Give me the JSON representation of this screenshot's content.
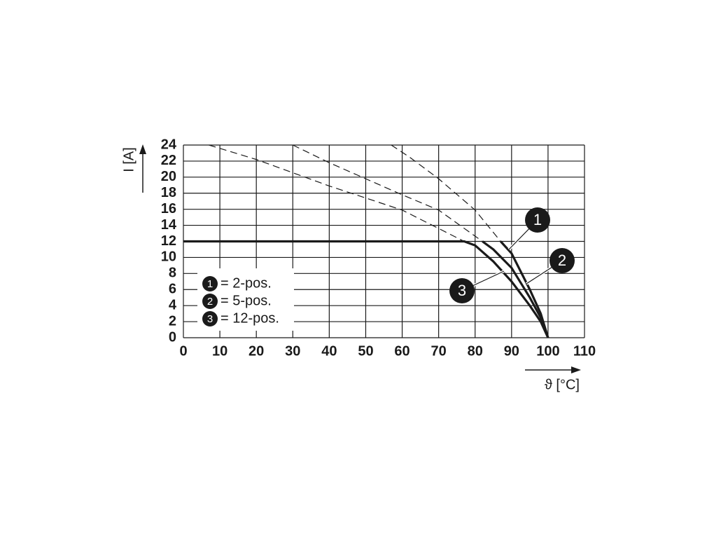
{
  "chart_data": {
    "type": "line",
    "x_label": "ϑ [°C]",
    "y_label": "I [A]",
    "xlim": [
      0,
      110
    ],
    "ylim": [
      0,
      24
    ],
    "xticks": [
      0,
      10,
      20,
      30,
      40,
      50,
      60,
      70,
      80,
      90,
      100,
      110
    ],
    "yticks": [
      0,
      2,
      4,
      6,
      8,
      10,
      12,
      14,
      16,
      18,
      20,
      22,
      24
    ],
    "grid": true,
    "color": "#1a1a1a",
    "series": [
      {
        "marker": "1",
        "name": "= 2-pos.",
        "dashed": {
          "x": [
            57,
            62,
            70,
            80,
            87
          ],
          "values": [
            24,
            22.5,
            19.8,
            15.9,
            12
          ]
        },
        "solid": {
          "x": [
            87,
            90,
            95,
            98,
            100
          ],
          "values": [
            12,
            10.5,
            6,
            3,
            0
          ]
        }
      },
      {
        "marker": "2",
        "name": "= 5-pos.",
        "dashed": {
          "x": [
            30,
            40,
            50,
            60,
            70,
            82
          ],
          "values": [
            24,
            21.8,
            19.8,
            17.8,
            15.9,
            12
          ]
        },
        "solid": {
          "x": [
            82,
            85,
            90,
            95,
            98,
            100
          ],
          "values": [
            12,
            11,
            8.7,
            5,
            2.5,
            0
          ]
        }
      },
      {
        "marker": "3",
        "name": "= 12-pos.",
        "dashed": {
          "x": [
            7,
            20,
            40,
            60,
            77
          ],
          "values": [
            24,
            22.2,
            18.9,
            15.9,
            12
          ]
        },
        "solid": {
          "x": [
            0,
            77,
            80,
            85,
            90,
            95,
            98,
            100
          ],
          "values": [
            12,
            12,
            11.5,
            9.5,
            7,
            4,
            2,
            0
          ]
        }
      }
    ]
  }
}
